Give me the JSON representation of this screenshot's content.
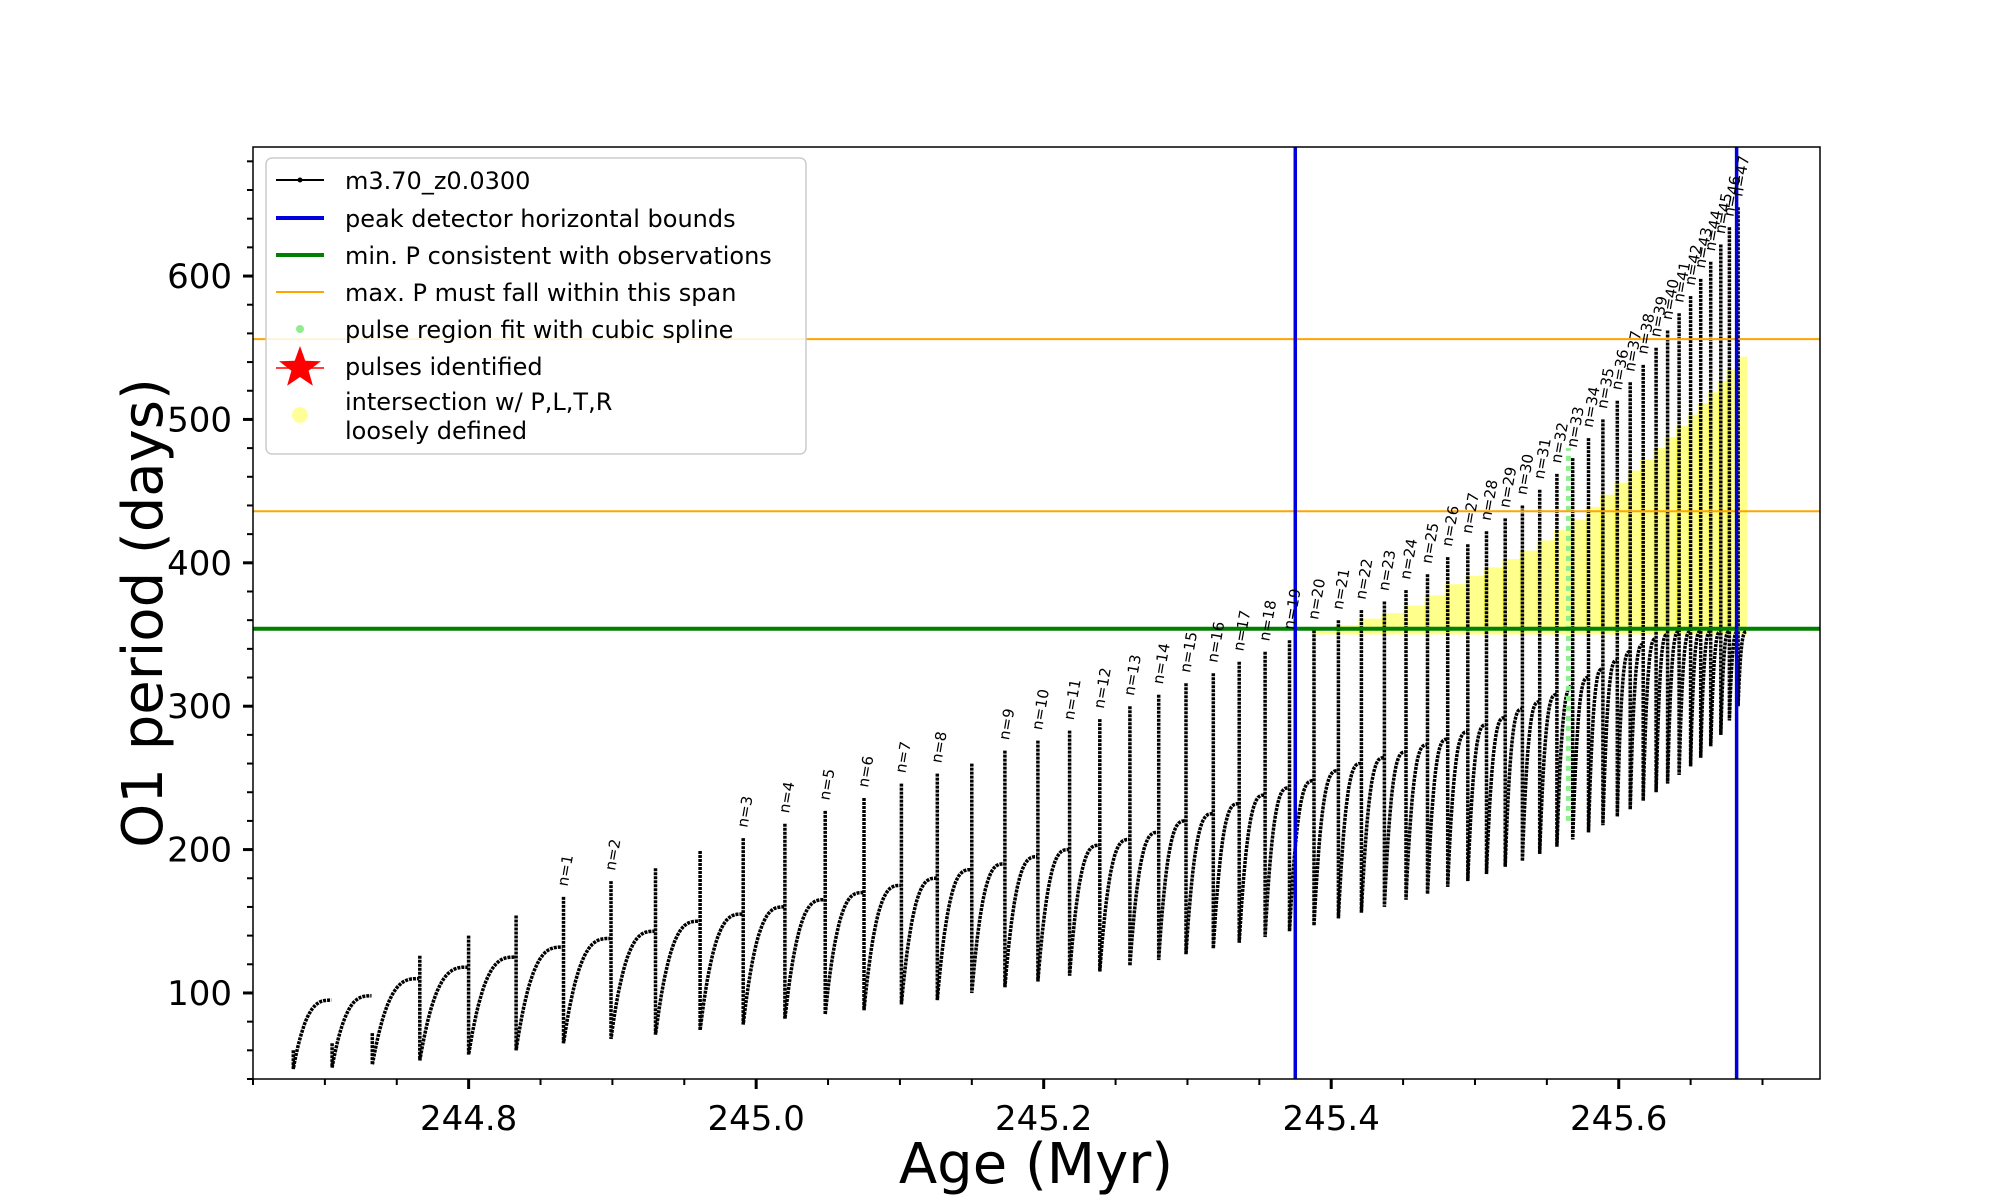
{
  "chart_data": {
    "type": "line",
    "title": "",
    "xlabel": "Age (Myr)",
    "ylabel": "O1 period (days)",
    "xlim": [
      244.65,
      245.74
    ],
    "ylim": [
      40,
      690
    ],
    "xticks": [
      244.8,
      245.0,
      245.2,
      245.4,
      245.6
    ],
    "xtick_labels": [
      "244.8",
      "245.0",
      "245.2",
      "245.4",
      "245.6"
    ],
    "yticks": [
      100,
      200,
      300,
      400,
      500,
      600
    ],
    "ytick_labels": [
      "100",
      "200",
      "300",
      "400",
      "500",
      "600"
    ],
    "grid": false,
    "legend_position": "top-left",
    "colors": {
      "track": "#000000",
      "bounds": "#0000dd",
      "min_p": "#008000",
      "max_p": "#ffa500",
      "spline": "#90ee90",
      "pulses": "#ff0000",
      "intersection": "#ffff00"
    },
    "legend": [
      {
        "label": "m3.70_z0.0300",
        "style": "line-dot",
        "color": "#000000"
      },
      {
        "label": "peak detector horizontal bounds",
        "style": "line",
        "color": "#0000dd"
      },
      {
        "label": "min. P consistent with observations",
        "style": "line",
        "color": "#008000"
      },
      {
        "label": "max. P must fall within this span",
        "style": "thin-line",
        "color": "#ffa500"
      },
      {
        "label": "pulse region fit with cubic spline",
        "style": "dot",
        "color": "#90ee90"
      },
      {
        "label": "pulses identified",
        "style": "star",
        "color": "#ff0000"
      },
      {
        "label": "intersection w/ P,L,T,R",
        "label2": "loosely defined",
        "style": "big-dot",
        "color": "#ffff99"
      }
    ],
    "vlines": [
      245.375,
      245.682
    ],
    "hline_min_p": 354,
    "hlines_max_p": [
      556,
      436
    ],
    "spline_x": 245.565,
    "spline_range": [
      220,
      480
    ],
    "intersection_region": {
      "x_start": 245.38,
      "x_end": 245.69,
      "y_min": 350
    },
    "series": [
      {
        "name": "m3.70_z0.0300",
        "pulses": [
          {
            "x": 244.678,
            "peak": 60,
            "min": 47,
            "end": 95
          },
          {
            "x": 244.705,
            "peak": 65,
            "min": 48,
            "end": 98
          },
          {
            "x": 244.733,
            "peak": 72,
            "min": 50,
            "end": 110
          },
          {
            "x": 244.766,
            "peak": 126,
            "min": 53,
            "end": 118
          },
          {
            "x": 244.8,
            "peak": 140,
            "min": 57,
            "end": 125
          },
          {
            "x": 244.833,
            "peak": 154,
            "min": 60,
            "end": 132
          },
          {
            "x": 244.866,
            "peak": 167,
            "min": 65,
            "end": 138
          },
          {
            "x": 244.899,
            "peak": 178,
            "min": 68,
            "end": 143
          },
          {
            "x": 244.93,
            "peak": 187,
            "min": 71,
            "end": 150
          },
          {
            "x": 244.961,
            "peak": 199,
            "min": 74,
            "end": 155
          },
          {
            "x": 244.991,
            "peak": 208,
            "min": 78,
            "end": 160
          },
          {
            "x": 245.02,
            "peak": 218,
            "min": 82,
            "end": 165
          },
          {
            "x": 245.048,
            "peak": 227,
            "min": 85,
            "end": 170
          },
          {
            "x": 245.075,
            "peak": 236,
            "min": 88,
            "end": 175
          },
          {
            "x": 245.101,
            "peak": 246,
            "min": 92,
            "end": 180
          },
          {
            "x": 245.126,
            "peak": 253,
            "min": 95,
            "end": 186
          },
          {
            "x": 245.15,
            "peak": 260,
            "min": 100,
            "end": 190
          },
          {
            "x": 245.173,
            "peak": 269,
            "min": 104,
            "end": 195
          },
          {
            "x": 245.196,
            "peak": 276,
            "min": 108,
            "end": 200
          },
          {
            "x": 245.218,
            "peak": 283,
            "min": 112,
            "end": 203
          },
          {
            "x": 245.239,
            "peak": 291,
            "min": 115,
            "end": 207
          },
          {
            "x": 245.26,
            "peak": 300,
            "min": 119,
            "end": 212
          },
          {
            "x": 245.28,
            "peak": 308,
            "min": 123,
            "end": 220
          },
          {
            "x": 245.299,
            "peak": 316,
            "min": 127,
            "end": 225
          },
          {
            "x": 245.318,
            "peak": 323,
            "min": 131,
            "end": 232
          },
          {
            "x": 245.336,
            "peak": 331,
            "min": 135,
            "end": 238
          },
          {
            "x": 245.354,
            "peak": 338,
            "min": 139,
            "end": 243
          },
          {
            "x": 245.371,
            "peak": 346,
            "min": 143,
            "end": 248
          },
          {
            "x": 245.388,
            "peak": 353,
            "min": 147,
            "end": 255
          },
          {
            "x": 245.405,
            "peak": 360,
            "min": 152,
            "end": 260
          },
          {
            "x": 245.421,
            "peak": 367,
            "min": 156,
            "end": 264
          },
          {
            "x": 245.437,
            "peak": 373,
            "min": 160,
            "end": 268
          },
          {
            "x": 245.452,
            "peak": 381,
            "min": 165,
            "end": 273
          },
          {
            "x": 245.467,
            "peak": 392,
            "min": 169,
            "end": 277
          },
          {
            "x": 245.481,
            "peak": 404,
            "min": 174,
            "end": 282
          },
          {
            "x": 245.495,
            "peak": 413,
            "min": 178,
            "end": 287
          },
          {
            "x": 245.508,
            "peak": 422,
            "min": 183,
            "end": 292
          },
          {
            "x": 245.521,
            "peak": 431,
            "min": 188,
            "end": 298
          },
          {
            "x": 245.533,
            "peak": 440,
            "min": 192,
            "end": 303
          },
          {
            "x": 245.545,
            "peak": 451,
            "min": 197,
            "end": 308
          },
          {
            "x": 245.557,
            "peak": 462,
            "min": 202,
            "end": 314
          },
          {
            "x": 245.568,
            "peak": 473,
            "min": 207,
            "end": 320
          },
          {
            "x": 245.579,
            "peak": 487,
            "min": 212,
            "end": 326
          },
          {
            "x": 245.589,
            "peak": 500,
            "min": 217,
            "end": 332
          },
          {
            "x": 245.599,
            "peak": 513,
            "min": 223,
            "end": 338
          },
          {
            "x": 245.608,
            "peak": 526,
            "min": 228,
            "end": 343
          },
          {
            "x": 245.617,
            "peak": 538,
            "min": 234,
            "end": 347
          },
          {
            "x": 245.626,
            "peak": 550,
            "min": 240,
            "end": 350
          },
          {
            "x": 245.634,
            "peak": 562,
            "min": 246,
            "end": 352
          },
          {
            "x": 245.642,
            "peak": 574,
            "min": 252,
            "end": 352
          },
          {
            "x": 245.65,
            "peak": 586,
            "min": 258,
            "end": 352
          },
          {
            "x": 245.657,
            "peak": 598,
            "min": 264,
            "end": 352
          },
          {
            "x": 245.664,
            "peak": 610,
            "min": 272,
            "end": 352
          },
          {
            "x": 245.671,
            "peak": 622,
            "min": 280,
            "end": 352
          },
          {
            "x": 245.677,
            "peak": 634,
            "min": 290,
            "end": 352
          },
          {
            "x": 245.683,
            "peak": 648,
            "min": 300,
            "end": 352
          }
        ]
      }
    ],
    "pulse_labels": [
      {
        "text": "n=1",
        "x": 244.866,
        "y": 167
      },
      {
        "text": "n=2",
        "x": 244.899,
        "y": 178
      },
      {
        "text": "n=3",
        "x": 244.991,
        "y": 208
      },
      {
        "text": "n=4",
        "x": 245.02,
        "y": 218
      },
      {
        "text": "n=5",
        "x": 245.048,
        "y": 227
      },
      {
        "text": "n=6",
        "x": 245.075,
        "y": 236
      },
      {
        "text": "n=7",
        "x": 245.101,
        "y": 246
      },
      {
        "text": "n=8",
        "x": 245.126,
        "y": 253
      },
      {
        "text": "n=9",
        "x": 245.173,
        "y": 269
      },
      {
        "text": "n=10",
        "x": 245.196,
        "y": 276
      },
      {
        "text": "n=11",
        "x": 245.218,
        "y": 283
      },
      {
        "text": "n=12",
        "x": 245.239,
        "y": 291
      },
      {
        "text": "n=13",
        "x": 245.26,
        "y": 300
      },
      {
        "text": "n=14",
        "x": 245.28,
        "y": 308
      },
      {
        "text": "n=15",
        "x": 245.299,
        "y": 316
      },
      {
        "text": "n=16",
        "x": 245.318,
        "y": 323
      },
      {
        "text": "n=17",
        "x": 245.336,
        "y": 331
      },
      {
        "text": "n=18",
        "x": 245.354,
        "y": 338
      },
      {
        "text": "n=19",
        "x": 245.371,
        "y": 346
      },
      {
        "text": "n=20",
        "x": 245.388,
        "y": 353
      },
      {
        "text": "n=21",
        "x": 245.405,
        "y": 360
      },
      {
        "text": "n=22",
        "x": 245.421,
        "y": 367
      },
      {
        "text": "n=23",
        "x": 245.437,
        "y": 373
      },
      {
        "text": "n=24",
        "x": 245.452,
        "y": 381
      },
      {
        "text": "n=25",
        "x": 245.467,
        "y": 392
      },
      {
        "text": "n=26",
        "x": 245.481,
        "y": 404
      },
      {
        "text": "n=27",
        "x": 245.495,
        "y": 413
      },
      {
        "text": "n=28",
        "x": 245.508,
        "y": 422
      },
      {
        "text": "n=29",
        "x": 245.521,
        "y": 431
      },
      {
        "text": "n=30",
        "x": 245.533,
        "y": 440
      },
      {
        "text": "n=31",
        "x": 245.545,
        "y": 451
      },
      {
        "text": "n=32",
        "x": 245.557,
        "y": 462
      },
      {
        "text": "n=33",
        "x": 245.568,
        "y": 473
      },
      {
        "text": "n=34",
        "x": 245.579,
        "y": 487
      },
      {
        "text": "n=35",
        "x": 245.589,
        "y": 500
      },
      {
        "text": "n=36",
        "x": 245.599,
        "y": 513
      },
      {
        "text": "n=37",
        "x": 245.608,
        "y": 526
      },
      {
        "text": "n=38",
        "x": 245.617,
        "y": 538
      },
      {
        "text": "n=39",
        "x": 245.626,
        "y": 550
      },
      {
        "text": "n=40",
        "x": 245.634,
        "y": 562
      },
      {
        "text": "n=41",
        "x": 245.642,
        "y": 574
      },
      {
        "text": "n=42",
        "x": 245.65,
        "y": 586
      },
      {
        "text": "n=43",
        "x": 245.657,
        "y": 598
      },
      {
        "text": "n=44",
        "x": 245.664,
        "y": 610
      },
      {
        "text": "n=45",
        "x": 245.671,
        "y": 622
      },
      {
        "text": "n=46",
        "x": 245.677,
        "y": 634
      },
      {
        "text": "n=47",
        "x": 245.683,
        "y": 648
      }
    ]
  }
}
